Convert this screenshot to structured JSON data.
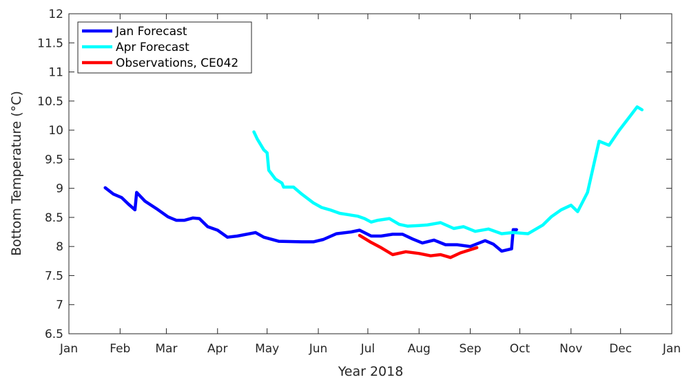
{
  "chart_data": {
    "type": "line",
    "title": "",
    "xlabel": "Year 2018",
    "ylabel": "Bottom Temperature (°C)",
    "ylabel_parts": {
      "main": "Bottom Temperature (",
      "sup": "o",
      "unit": "C)"
    },
    "ylim": [
      6.5,
      12
    ],
    "xlim": [
      "2018-01-01",
      "2019-01-01"
    ],
    "grid": false,
    "legend_position": "top-left",
    "yticks": [
      "6.5",
      "7",
      "7.5",
      "8",
      "8.5",
      "9",
      "9.5",
      "10",
      "10.5",
      "11",
      "11.5",
      "12"
    ],
    "xticks": [
      {
        "label": "Jan",
        "date": "2018-01-01"
      },
      {
        "label": "Feb",
        "date": "2018-02-01"
      },
      {
        "label": "Mar",
        "date": "2018-03-01"
      },
      {
        "label": "Apr",
        "date": "2018-04-01"
      },
      {
        "label": "May",
        "date": "2018-05-01"
      },
      {
        "label": "Jun",
        "date": "2018-06-01"
      },
      {
        "label": "Jul",
        "date": "2018-07-01"
      },
      {
        "label": "Aug",
        "date": "2018-08-01"
      },
      {
        "label": "Sep",
        "date": "2018-09-01"
      },
      {
        "label": "Oct",
        "date": "2018-10-01"
      },
      {
        "label": "Nov",
        "date": "2018-11-01"
      },
      {
        "label": "Dec",
        "date": "2018-12-01"
      },
      {
        "label": "Jan",
        "date": "2019-01-01"
      }
    ],
    "series": [
      {
        "name": "Jan Forecast",
        "color": "#0000ff",
        "points": [
          [
            "2018-01-23",
            9.01
          ],
          [
            "2018-01-28",
            8.9
          ],
          [
            "2018-02-02",
            8.84
          ],
          [
            "2018-02-06",
            8.73
          ],
          [
            "2018-02-10",
            8.63
          ],
          [
            "2018-02-11",
            8.93
          ],
          [
            "2018-02-16",
            8.78
          ],
          [
            "2018-02-23",
            8.65
          ],
          [
            "2018-03-02",
            8.51
          ],
          [
            "2018-03-07",
            8.45
          ],
          [
            "2018-03-12",
            8.45
          ],
          [
            "2018-03-17",
            8.49
          ],
          [
            "2018-03-21",
            8.48
          ],
          [
            "2018-03-26",
            8.34
          ],
          [
            "2018-04-01",
            8.28
          ],
          [
            "2018-04-07",
            8.16
          ],
          [
            "2018-04-13",
            8.18
          ],
          [
            "2018-04-24",
            8.24
          ],
          [
            "2018-04-29",
            8.16
          ],
          [
            "2018-05-08",
            8.09
          ],
          [
            "2018-05-22",
            8.08
          ],
          [
            "2018-05-29",
            8.08
          ],
          [
            "2018-06-04",
            8.12
          ],
          [
            "2018-06-12",
            8.22
          ],
          [
            "2018-06-21",
            8.25
          ],
          [
            "2018-06-26",
            8.28
          ],
          [
            "2018-07-03",
            8.18
          ],
          [
            "2018-07-09",
            8.18
          ],
          [
            "2018-07-16",
            8.21
          ],
          [
            "2018-07-22",
            8.21
          ],
          [
            "2018-07-28",
            8.13
          ],
          [
            "2018-08-03",
            8.06
          ],
          [
            "2018-08-10",
            8.11
          ],
          [
            "2018-08-17",
            8.03
          ],
          [
            "2018-08-24",
            8.03
          ],
          [
            "2018-09-01",
            8.0
          ],
          [
            "2018-09-10",
            8.1
          ],
          [
            "2018-09-15",
            8.04
          ],
          [
            "2018-09-20",
            7.92
          ],
          [
            "2018-09-26",
            7.96
          ],
          [
            "2018-09-27",
            8.29
          ],
          [
            "2018-09-29",
            8.29
          ]
        ]
      },
      {
        "name": "Apr Forecast",
        "color": "#00ffff",
        "points": [
          [
            "2018-04-23",
            9.97
          ],
          [
            "2018-04-25",
            9.85
          ],
          [
            "2018-04-29",
            9.66
          ],
          [
            "2018-05-01",
            9.61
          ],
          [
            "2018-05-02",
            9.31
          ],
          [
            "2018-05-06",
            9.16
          ],
          [
            "2018-05-10",
            9.09
          ],
          [
            "2018-05-11",
            9.02
          ],
          [
            "2018-05-17",
            9.02
          ],
          [
            "2018-05-22",
            8.9
          ],
          [
            "2018-05-29",
            8.75
          ],
          [
            "2018-06-03",
            8.67
          ],
          [
            "2018-06-08",
            8.63
          ],
          [
            "2018-06-14",
            8.57
          ],
          [
            "2018-06-25",
            8.52
          ],
          [
            "2018-06-29",
            8.48
          ],
          [
            "2018-07-03",
            8.42
          ],
          [
            "2018-07-07",
            8.45
          ],
          [
            "2018-07-14",
            8.48
          ],
          [
            "2018-07-20",
            8.38
          ],
          [
            "2018-07-25",
            8.35
          ],
          [
            "2018-08-01",
            8.36
          ],
          [
            "2018-08-06",
            8.37
          ],
          [
            "2018-08-14",
            8.41
          ],
          [
            "2018-08-22",
            8.31
          ],
          [
            "2018-08-28",
            8.34
          ],
          [
            "2018-09-04",
            8.26
          ],
          [
            "2018-09-12",
            8.3
          ],
          [
            "2018-09-20",
            8.22
          ],
          [
            "2018-09-27",
            8.24
          ],
          [
            "2018-10-06",
            8.22
          ],
          [
            "2018-10-15",
            8.37
          ],
          [
            "2018-10-20",
            8.51
          ],
          [
            "2018-10-26",
            8.63
          ],
          [
            "2018-11-01",
            8.71
          ],
          [
            "2018-11-05",
            8.6
          ],
          [
            "2018-11-11",
            8.93
          ],
          [
            "2018-11-18",
            9.81
          ],
          [
            "2018-11-24",
            9.74
          ],
          [
            "2018-11-30",
            9.99
          ],
          [
            "2018-12-07",
            10.25
          ],
          [
            "2018-12-11",
            10.4
          ],
          [
            "2018-12-14",
            10.35
          ]
        ]
      },
      {
        "name": "Observations, CE042",
        "color": "#ff0000",
        "points": [
          [
            "2018-06-26",
            8.19
          ],
          [
            "2018-07-03",
            8.07
          ],
          [
            "2018-07-09",
            7.98
          ],
          [
            "2018-07-16",
            7.86
          ],
          [
            "2018-07-24",
            7.91
          ],
          [
            "2018-08-01",
            7.88
          ],
          [
            "2018-08-08",
            7.84
          ],
          [
            "2018-08-14",
            7.86
          ],
          [
            "2018-08-20",
            7.81
          ],
          [
            "2018-08-26",
            7.89
          ],
          [
            "2018-09-05",
            7.98
          ]
        ]
      }
    ]
  }
}
